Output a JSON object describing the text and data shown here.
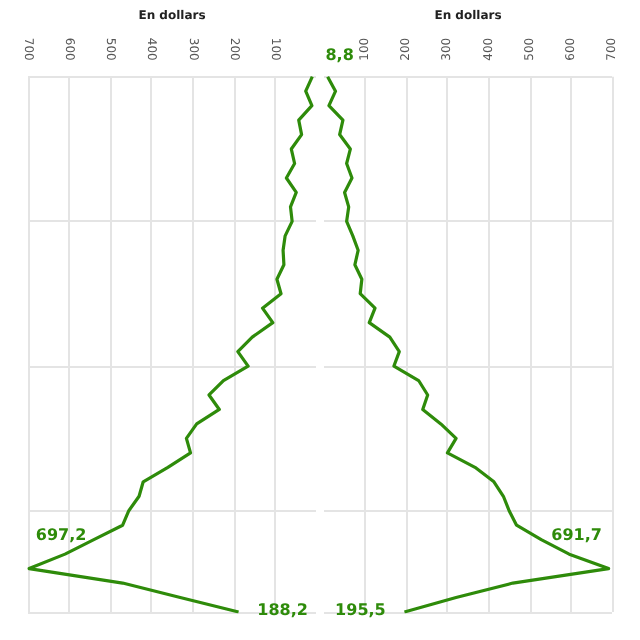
{
  "chart_data": [
    {
      "type": "line",
      "orientation": "horizontal",
      "xlabel": "En dollars",
      "xlim": [
        700,
        0
      ],
      "xticks": [
        700,
        600,
        500,
        400,
        300,
        200,
        100
      ],
      "grid": true,
      "marker": "none",
      "line_style": "solid",
      "categories": [
        null,
        null,
        null,
        null,
        null,
        null,
        null,
        null,
        null,
        null,
        null,
        null,
        null,
        null,
        null,
        null,
        null,
        null,
        null,
        null,
        null,
        null,
        null,
        null,
        null,
        null,
        null,
        null,
        null,
        null,
        null,
        null,
        null,
        null,
        null,
        null,
        null,
        null
      ],
      "series": [
        {
          "color": "#2e8b0a",
          "values": [
            9,
            25,
            10,
            42,
            35,
            60,
            52,
            72,
            48,
            62,
            58,
            75,
            80,
            78,
            95,
            85,
            130,
            105,
            155,
            190,
            165,
            225,
            260,
            235,
            290,
            315,
            305,
            360,
            420,
            430,
            455,
            470,
            540,
            610,
            697.2,
            470,
            330,
            188.2
          ],
          "value_labels": [
            null,
            null,
            null,
            null,
            null,
            null,
            null,
            null,
            null,
            null,
            null,
            null,
            null,
            null,
            null,
            null,
            null,
            null,
            null,
            null,
            null,
            null,
            null,
            null,
            null,
            null,
            null,
            null,
            null,
            null,
            null,
            null,
            null,
            null,
            "697,2",
            null,
            null,
            "188,2"
          ]
        }
      ]
    },
    {
      "type": "line",
      "orientation": "horizontal",
      "xlabel": "En dollars",
      "xlim": [
        0,
        700
      ],
      "xticks": [
        100,
        200,
        300,
        400,
        500,
        600,
        700
      ],
      "grid": true,
      "marker": "none",
      "line_style": "solid",
      "categories": [
        null,
        null,
        null,
        null,
        null,
        null,
        null,
        null,
        null,
        null,
        null,
        null,
        null,
        null,
        null,
        null,
        null,
        null,
        null,
        null,
        null,
        null,
        null,
        null,
        null,
        null,
        null,
        null,
        null,
        null,
        null,
        null,
        null,
        null,
        null,
        null,
        null,
        null
      ],
      "series": [
        {
          "color": "#2e8b0a",
          "values": [
            8.8,
            28,
            12,
            46,
            38,
            64,
            55,
            68,
            50,
            60,
            55,
            70,
            83,
            75,
            92,
            88,
            124,
            110,
            160,
            183,
            170,
            230,
            252,
            240,
            284,
            321,
            300,
            367,
            413,
            436,
            450,
            468,
            528,
            596,
            691.7,
            459,
            321,
            195.5
          ],
          "value_labels": [
            "8,8",
            null,
            null,
            null,
            null,
            null,
            null,
            null,
            null,
            null,
            null,
            null,
            null,
            null,
            null,
            null,
            null,
            null,
            null,
            null,
            null,
            null,
            null,
            null,
            null,
            null,
            null,
            null,
            null,
            null,
            null,
            null,
            null,
            null,
            "691,7",
            null,
            null,
            "195,5"
          ]
        }
      ]
    }
  ]
}
